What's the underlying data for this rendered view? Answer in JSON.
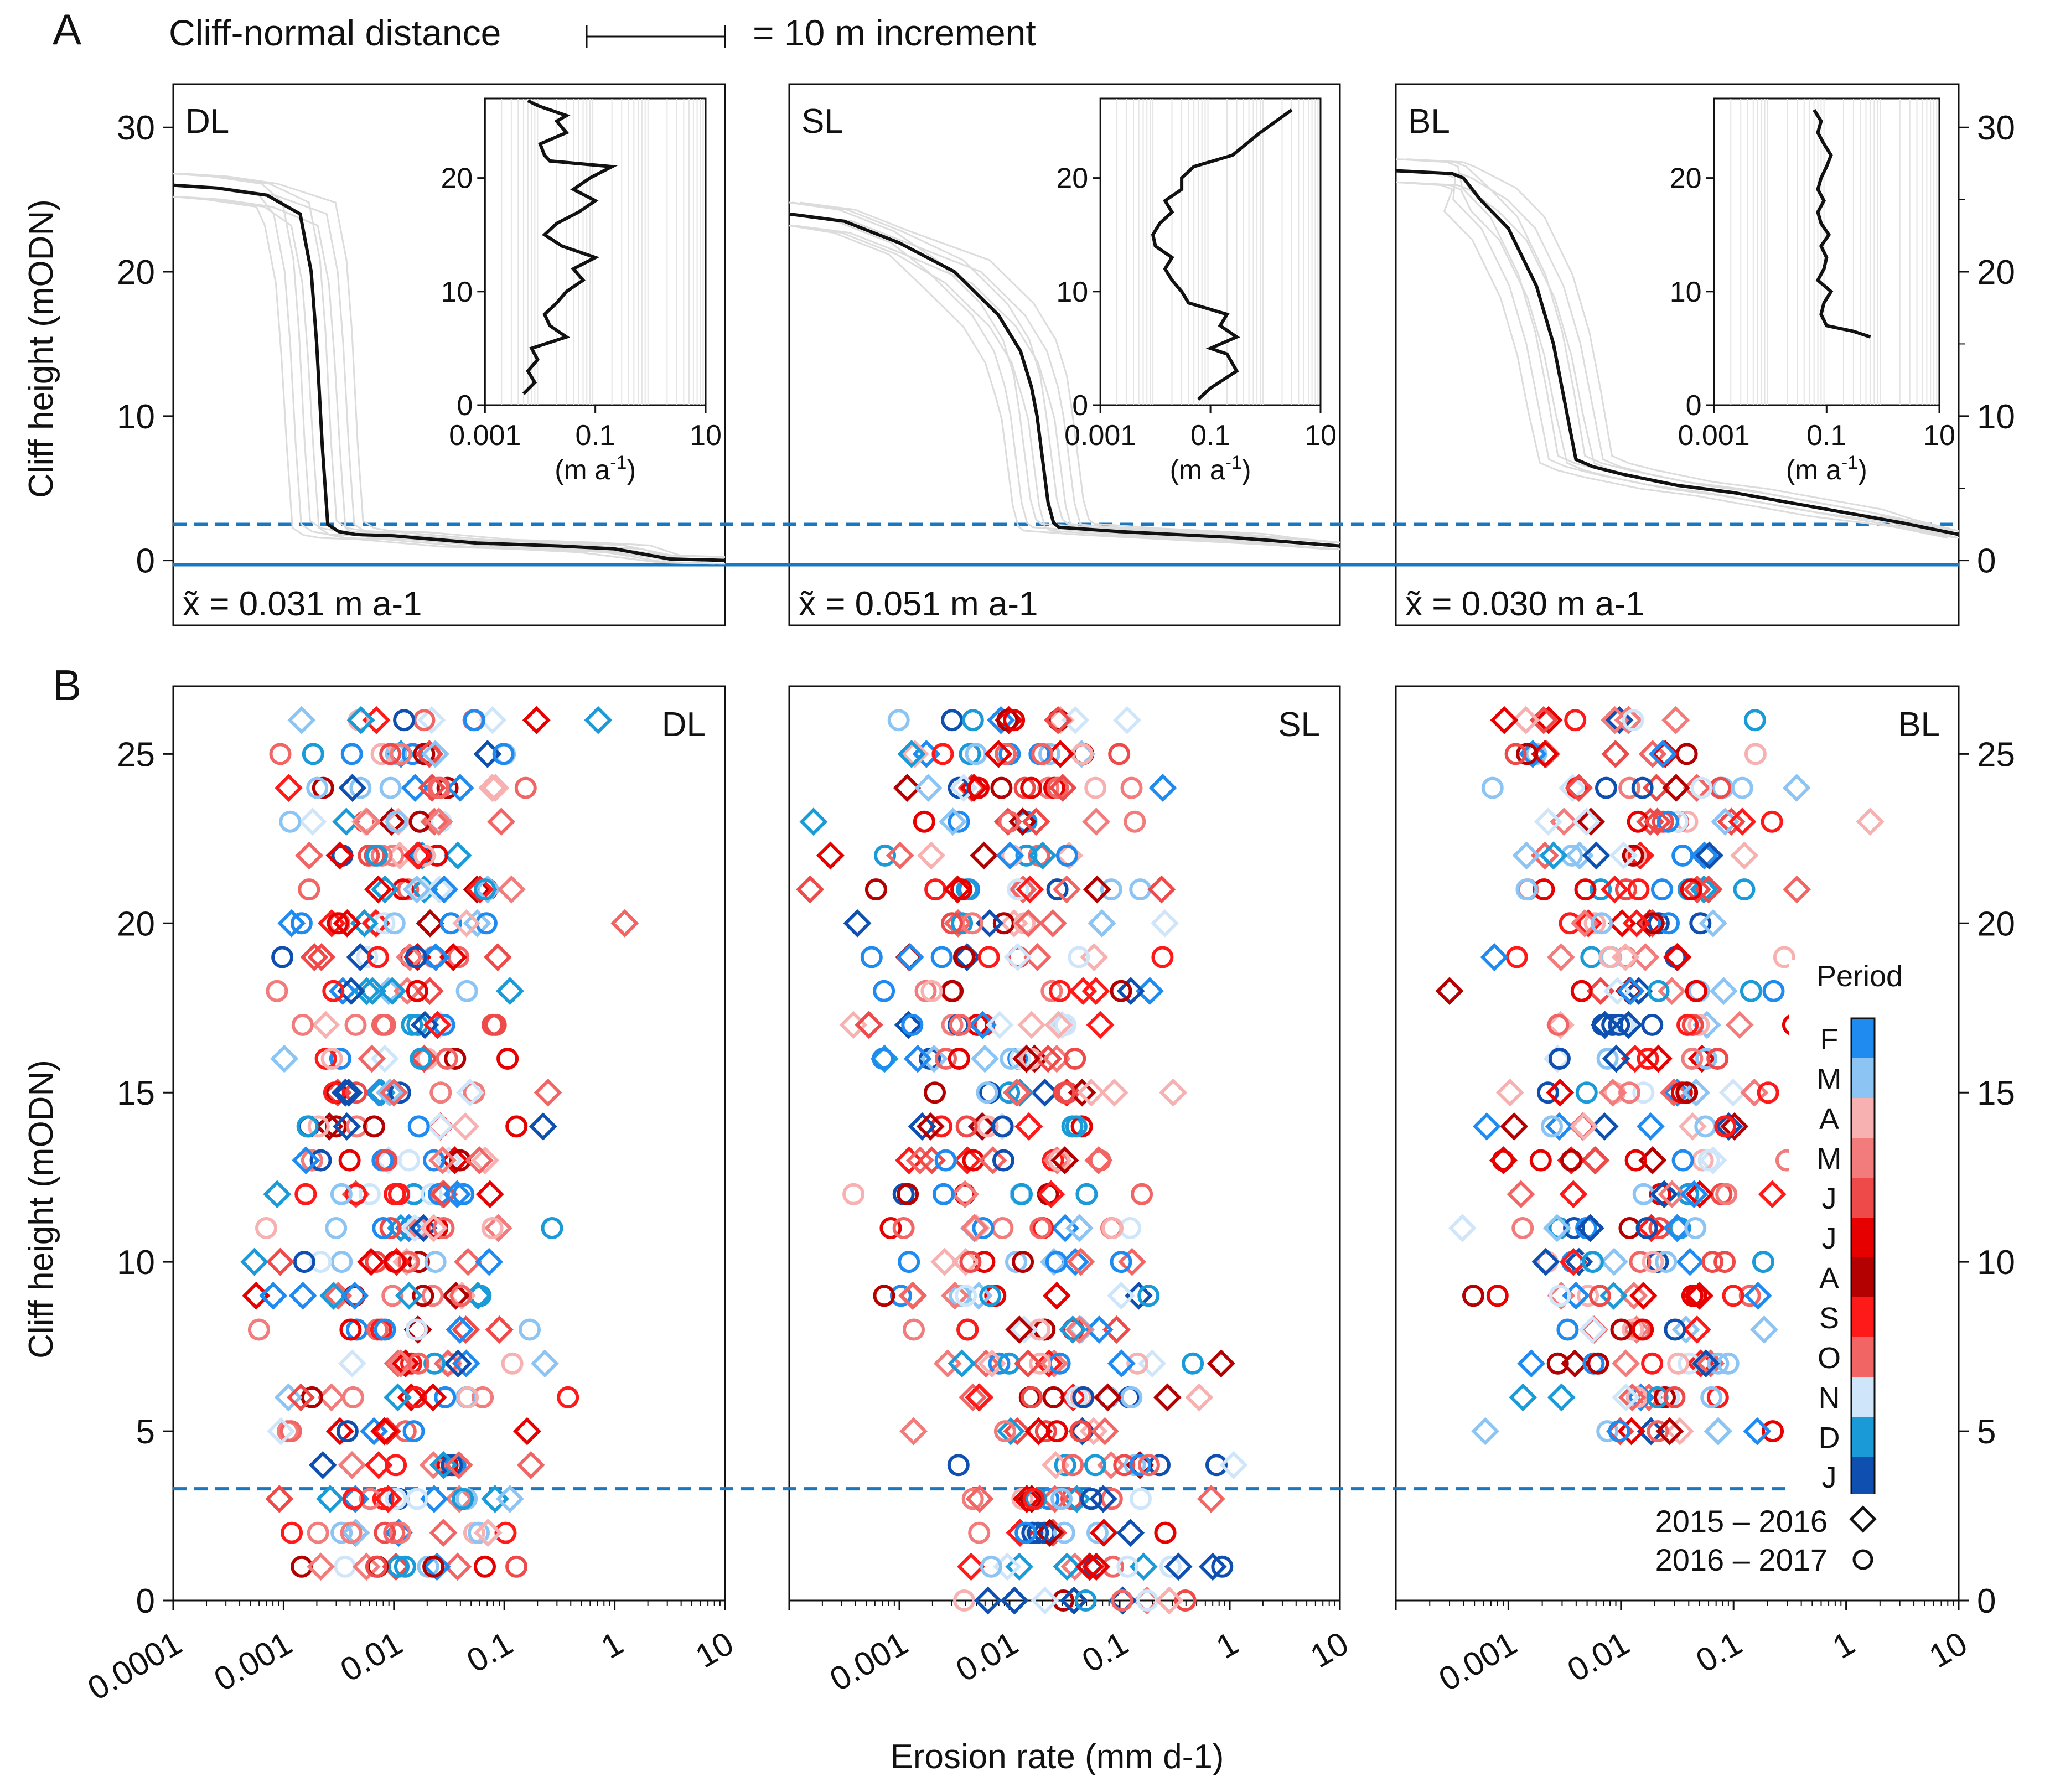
{
  "chart_data": [
    {
      "id": "A",
      "type": "line",
      "panel_label": "A",
      "scale_bar_label": "Cliff-normal distance",
      "scale_bar_value": "= 10 m increment",
      "ylabel": "Cliff height (mODN)",
      "ylim": [
        -4.5,
        33
      ],
      "yticks": [
        0,
        10,
        20,
        30
      ],
      "reference_lines": {
        "dashed_y": 2.5,
        "solid_y": -0.3
      },
      "inset": {
        "xlabel": "(m a-1)",
        "xticks": [
          "0.001",
          "0.1",
          "10"
        ],
        "xlim": [
          0.001,
          10
        ],
        "ylim": [
          0,
          27
        ],
        "yticks": [
          0,
          10,
          20
        ]
      },
      "panels": [
        {
          "name": "DL",
          "median_label": "x̃ = 0.031 m a-1",
          "xlim": [
            0,
            100
          ],
          "profile": {
            "x": [
              0,
              8,
              17,
              23,
              25,
              26,
              27,
              28,
              30,
              33,
              40,
              55,
              70,
              80,
              90,
              100
            ],
            "y": [
              26,
              25.8,
              25.3,
              24,
              20,
              15,
              8,
              2.5,
              2,
              1.8,
              1.7,
              1.2,
              1,
              0.8,
              0.1,
              0
            ]
          },
          "inset_profile": {
            "rate": [
              0.005,
              0.008,
              0.006,
              0.009,
              0.007,
              0.03,
              0.015,
              0.012,
              0.02,
              0.03,
              0.06,
              0.04,
              0.1,
              0.025,
              0.012,
              0.02,
              0.05,
              0.1,
              0.04,
              0.08,
              0.2,
              0.015,
              0.012,
              0.01,
              0.03,
              0.02,
              0.03,
              0.015,
              0.01,
              0.008,
              0.006
            ],
            "height": [
              1,
              2,
              3,
              4,
              5,
              6,
              7,
              8,
              9,
              10,
              11,
              12,
              13,
              14,
              15,
              16,
              17,
              18,
              19,
              20,
              21,
              21.5,
              22,
              23,
              24,
              25,
              25.5,
              26,
              26.3,
              26.5,
              26.8
            ]
          }
        },
        {
          "name": "SL",
          "median_label": "x̃ = 0.051 m a-1",
          "xlim": [
            0,
            100
          ],
          "profile": {
            "x": [
              0,
              10,
              20,
              30,
              38,
              42,
              44,
              45,
              46,
              47,
              48,
              49,
              60,
              70,
              80,
              90,
              100
            ],
            "y": [
              24,
              23.5,
              22,
              20,
              17,
              14.5,
              12,
              10,
              7,
              4,
              2.6,
              2.3,
              2,
              1.8,
              1.6,
              1.3,
              1
            ]
          },
          "inset_profile": {
            "rate": [
              0.06,
              0.1,
              0.3,
              0.2,
              0.1,
              0.3,
              0.15,
              0.2,
              0.04,
              0.03,
              0.02,
              0.015,
              0.02,
              0.01,
              0.009,
              0.012,
              0.02,
              0.015,
              0.03,
              0.03,
              0.05,
              0.25,
              0.8,
              3
            ],
            "height": [
              0.5,
              1.5,
              3,
              4.5,
              5,
              6,
              7,
              8,
              9,
              10,
              11,
              12,
              13,
              14,
              15,
              16,
              17,
              18,
              19,
              20,
              21,
              22,
              24,
              26
            ]
          }
        },
        {
          "name": "BL",
          "median_label": "x̃ = 0.030 m a-1",
          "xlim": [
            0,
            100
          ],
          "profile": {
            "x": [
              0,
              10,
              12,
              15,
              20,
              25,
              28,
              30,
              32,
              35,
              40,
              50,
              60,
              70,
              80,
              90,
              100
            ],
            "y": [
              27,
              26.8,
              26.5,
              25,
              23,
              19,
              15,
              11,
              7,
              6.5,
              6,
              5.2,
              4.7,
              4,
              3.3,
              2.6,
              1.8
            ]
          },
          "inset_profile": {
            "rate": [
              0.6,
              0.3,
              0.1,
              0.08,
              0.09,
              0.12,
              0.07,
              0.09,
              0.1,
              0.08,
              0.11,
              0.08,
              0.07,
              0.09,
              0.07,
              0.08,
              0.1,
              0.12,
              0.09,
              0.07,
              0.08,
              0.06
            ],
            "height": [
              6,
              6.5,
              7,
              8,
              9,
              10,
              11,
              12,
              13,
              14,
              15,
              16,
              17,
              18,
              19,
              20,
              21,
              22,
              23,
              24,
              25,
              26
            ]
          }
        }
      ]
    },
    {
      "id": "B",
      "type": "scatter",
      "panel_label": "B",
      "xlabel": "Erosion rate (mm d-1)",
      "ylabel": "Cliff height (mODN)",
      "ylim": [
        0,
        27
      ],
      "yticks": [
        0,
        5,
        10,
        15,
        20,
        25
      ],
      "reference_lines": {
        "dashed_y": 3.3
      },
      "panels": [
        {
          "name": "DL",
          "xlim": [
            0.0001,
            10
          ],
          "xticks": [
            "0.0001",
            "0.001",
            "0.01",
            "0.1",
            "1",
            "10"
          ],
          "height_range": [
            1,
            26
          ],
          "center_exp": -1.9,
          "spread": 0.55
        },
        {
          "name": "SL",
          "xlim": [
            0.0001,
            10
          ],
          "xticks": [
            "0.001",
            "0.01",
            "0.1",
            "1",
            "10"
          ],
          "height_range": [
            0,
            26
          ],
          "center_exp": -2.0,
          "spread": 0.65
        },
        {
          "name": "BL",
          "xlim": [
            0.0001,
            10
          ],
          "xticks": [
            "0.001",
            "0.01",
            "0.1",
            "1",
            "10"
          ],
          "height_range": [
            5,
            26
          ],
          "center_exp": -1.8,
          "spread": 0.6
        }
      ],
      "legend": {
        "title": "Period",
        "months": [
          "F",
          "M",
          "A",
          "M",
          "J",
          "J",
          "A",
          "S",
          "O",
          "N",
          "D",
          "J"
        ],
        "colors": [
          "#1f8bf0",
          "#8cc4f4",
          "#f6b1b0",
          "#f27b7b",
          "#ef4a4a",
          "#e60000",
          "#b30000",
          "#ff1a1a",
          "#f26565",
          "#cfe5fa",
          "#1a9bd7",
          "#0f4fb0"
        ],
        "series": [
          {
            "name": "2015 – 2016",
            "marker": "diamond"
          },
          {
            "name": "2016 – 2017",
            "marker": "circle"
          }
        ]
      }
    }
  ]
}
